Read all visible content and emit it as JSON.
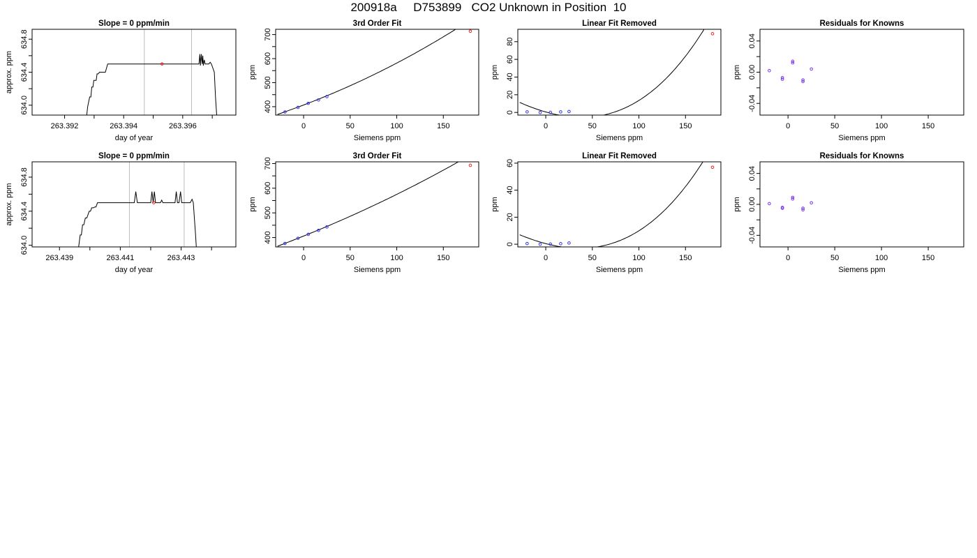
{
  "figure_title": "200918a     D753899   CO2 Unknown in Position  10",
  "chart_data": [
    {
      "id": "r1-time",
      "type": "line",
      "title": "Slope =  0  ppm/min",
      "xlabel": "day of year",
      "ylabel": "approx. ppm",
      "xlim": [
        263.3909,
        263.3978
      ],
      "ylim": [
        633.88,
        634.92
      ],
      "xticks": [
        263.392,
        263.393,
        263.394,
        263.395,
        263.396,
        263.397
      ],
      "xtick_labels": [
        "263.392",
        "",
        "263.394",
        "",
        "263.396",
        ""
      ],
      "yticks": [
        634.0,
        634.2,
        634.4,
        634.6,
        634.8
      ],
      "ytick_labels": [
        "634.0",
        "",
        "634.4",
        "",
        "634.8"
      ],
      "vlines": [
        263.3947,
        263.3963
      ],
      "vline_color": "#bbbbbb",
      "series": [
        {
          "color": "#000000",
          "x": [
            263.39275,
            263.39278,
            263.39285,
            263.39289,
            263.39292,
            263.39296,
            263.39299,
            263.39307,
            263.3931,
            263.39314,
            263.39318,
            263.3932,
            263.39338,
            263.39346,
            263.3965,
            263.39655,
            263.39658,
            263.3966,
            263.39663,
            263.39666,
            263.39668,
            263.3967,
            263.39673,
            263.39676,
            263.3968,
            263.39688,
            263.39693,
            263.39697,
            263.39707,
            263.39711,
            263.39715
          ],
          "y": [
            633.88,
            633.98,
            634.1,
            634.1,
            634.22,
            634.22,
            634.3,
            634.3,
            634.38,
            634.38,
            634.4,
            634.4,
            634.4,
            634.5,
            634.5,
            634.5,
            634.62,
            634.48,
            634.62,
            634.5,
            634.6,
            634.48,
            634.55,
            634.5,
            634.5,
            634.5,
            634.52,
            634.5,
            634.4,
            634.1,
            633.88
          ]
        }
      ],
      "points": [
        {
          "x": 263.3953,
          "y": 634.5,
          "color": "#ee2222"
        }
      ]
    },
    {
      "id": "r1-fit",
      "type": "line",
      "title": "3rd Order Fit",
      "xlabel": "Siemens ppm",
      "ylabel": "ppm",
      "xlim": [
        -30,
        188
      ],
      "ylim": [
        365,
        722
      ],
      "xticks": [
        0,
        50,
        100,
        150
      ],
      "xtick_labels": [
        "0",
        "50",
        "100",
        "150"
      ],
      "yticks": [
        400,
        450,
        500,
        550,
        600,
        650,
        700
      ],
      "ytick_labels": [
        "400",
        "",
        "500",
        "",
        "600",
        "",
        "700"
      ],
      "curve": {
        "fn": "fit",
        "a": 407,
        "b": 1.47,
        "c": 0.00264,
        "d": 1.1e-06,
        "x0": -28,
        "x1": 179,
        "color": "#000000"
      },
      "points": [
        {
          "x": -20,
          "y": 378,
          "color": "#3333ee"
        },
        {
          "x": -6,
          "y": 397,
          "color": "#3333ee"
        },
        {
          "x": 5,
          "y": 414,
          "color": "#3333ee"
        },
        {
          "x": 16,
          "y": 428,
          "color": "#3333ee"
        },
        {
          "x": 25,
          "y": 442,
          "color": "#3333ee"
        },
        {
          "x": 179,
          "y": 714,
          "color": "#ee2222"
        }
      ]
    },
    {
      "id": "r1-lin",
      "type": "line",
      "title": "Linear Fit Removed",
      "xlabel": "Siemens ppm",
      "ylabel": "ppm",
      "xlim": [
        -30,
        188
      ],
      "ylim": [
        -3,
        94
      ],
      "xticks": [
        0,
        50,
        100,
        150
      ],
      "xtick_labels": [
        "0",
        "50",
        "100",
        "150"
      ],
      "yticks": [
        0,
        20,
        40,
        60,
        80
      ],
      "ytick_labels": [
        "0",
        "20",
        "40",
        "60",
        "80"
      ],
      "curve": {
        "fn": "cubic",
        "a": 1e-05,
        "b": 0.0033,
        "c": 0.3,
        "yref": 0.55,
        "x0": -28,
        "x1": 179,
        "color": "#000000"
      },
      "points": [
        {
          "x": -20,
          "y": 0.6,
          "color": "#3333ee"
        },
        {
          "x": -6,
          "y": 0.0,
          "color": "#3333ee"
        },
        {
          "x": 5,
          "y": 0.1,
          "color": "#3333ee"
        },
        {
          "x": 16,
          "y": 0.6,
          "color": "#3333ee"
        },
        {
          "x": 25,
          "y": 1.0,
          "color": "#3333ee"
        },
        {
          "x": 179,
          "y": 89,
          "color": "#ee2222"
        }
      ]
    },
    {
      "id": "r1-res",
      "type": "scatter",
      "title": "Residuals for Knowns",
      "xlabel": "Siemens ppm",
      "ylabel": "ppm",
      "xlim": [
        -30,
        188
      ],
      "ylim": [
        -0.055,
        0.055
      ],
      "xticks": [
        0,
        50,
        100,
        150
      ],
      "xtick_labels": [
        "0",
        "50",
        "100",
        "150"
      ],
      "yticks": [
        -0.04,
        -0.02,
        0.0,
        0.02,
        0.04
      ],
      "ytick_labels": [
        "-0.04",
        "",
        "0.00",
        "",
        "0.04"
      ],
      "points": [
        {
          "x": -20,
          "y": 0.002,
          "color": "#7733ee"
        },
        {
          "x": -6,
          "y": -0.007,
          "color": "#7733ee"
        },
        {
          "x": -6,
          "y": -0.009,
          "color": "#7733ee"
        },
        {
          "x": 5,
          "y": 0.014,
          "color": "#7733ee"
        },
        {
          "x": 5,
          "y": 0.012,
          "color": "#7733ee"
        },
        {
          "x": 16,
          "y": -0.01,
          "color": "#7733ee"
        },
        {
          "x": 16,
          "y": -0.012,
          "color": "#7733ee"
        },
        {
          "x": 25,
          "y": 0.004,
          "color": "#7733ee"
        }
      ]
    },
    {
      "id": "r2-time",
      "type": "line",
      "title": "Slope =  0  ppm/min",
      "xlabel": "day of year",
      "ylabel": "approx. ppm",
      "xlim": [
        263.4381,
        263.4448
      ],
      "ylim": [
        633.98,
        634.98
      ],
      "xticks": [
        263.439,
        263.44,
        263.441,
        263.442,
        263.443,
        263.444
      ],
      "xtick_labels": [
        "263.439",
        "",
        "263.441",
        "",
        "263.443",
        ""
      ],
      "yticks": [
        634.0,
        634.2,
        634.4,
        634.6,
        634.8
      ],
      "ytick_labels": [
        "634.0",
        "",
        "634.4",
        "",
        "634.8"
      ],
      "vlines": [
        263.4413,
        263.4431
      ],
      "vline_color": "#bbbbbb",
      "series": [
        {
          "color": "#000000",
          "x": [
            263.43963,
            263.43968,
            263.43972,
            263.43976,
            263.4398,
            263.43985,
            263.4399,
            263.43998,
            263.44002,
            263.44006,
            263.44012,
            263.44016,
            263.4402,
            263.44025,
            263.4414,
            263.44146,
            263.44151,
            263.44156,
            263.44162,
            263.442,
            263.44204,
            263.44208,
            263.44212,
            263.44216,
            263.4422,
            263.44232,
            263.44236,
            263.4424,
            263.4428,
            263.44284,
            263.44288,
            263.44293,
            263.44298,
            263.44302,
            263.44306,
            263.4431,
            263.44314,
            263.44318,
            263.4433,
            263.44336,
            263.4434,
            263.44344,
            263.44347,
            263.4435
          ],
          "y": [
            633.98,
            634.12,
            634.12,
            634.24,
            634.24,
            634.32,
            634.32,
            634.4,
            634.4,
            634.44,
            634.44,
            634.45,
            634.45,
            634.5,
            634.5,
            634.5,
            634.63,
            634.5,
            634.5,
            634.5,
            634.63,
            634.5,
            634.63,
            634.5,
            634.5,
            634.5,
            634.53,
            634.5,
            634.5,
            634.63,
            634.5,
            634.5,
            634.63,
            634.5,
            634.5,
            634.5,
            634.5,
            634.5,
            634.5,
            634.54,
            634.5,
            634.3,
            634.15,
            633.98
          ]
        }
      ],
      "points": [
        {
          "x": 263.4421,
          "y": 634.5,
          "color": "#ee2222"
        }
      ]
    },
    {
      "id": "r2-fit",
      "type": "line",
      "title": "3rd Order Fit",
      "xlabel": "Siemens ppm",
      "ylabel": "ppm",
      "xlim": [
        -30,
        188
      ],
      "ylim": [
        362,
        707
      ],
      "xticks": [
        0,
        50,
        100,
        150
      ],
      "xtick_labels": [
        "0",
        "50",
        "100",
        "150"
      ],
      "yticks": [
        400,
        450,
        500,
        550,
        600,
        650,
        700
      ],
      "ytick_labels": [
        "400",
        "",
        "500",
        "",
        "600",
        "",
        "700"
      ],
      "curve": {
        "fn": "fit",
        "a": 406,
        "b": 1.52,
        "c": 0.00164,
        "d": 6.8e-07,
        "x0": -28,
        "x1": 179,
        "color": "#000000"
      },
      "points": [
        {
          "x": -20,
          "y": 376,
          "color": "#3333ee"
        },
        {
          "x": -6,
          "y": 397,
          "color": "#3333ee"
        },
        {
          "x": 5,
          "y": 413,
          "color": "#3333ee"
        },
        {
          "x": 16,
          "y": 429,
          "color": "#3333ee"
        },
        {
          "x": 25,
          "y": 443,
          "color": "#3333ee"
        },
        {
          "x": 179,
          "y": 693,
          "color": "#ee2222"
        }
      ]
    },
    {
      "id": "r2-lin",
      "type": "line",
      "title": "Linear Fit Removed",
      "xlabel": "Siemens ppm",
      "ylabel": "ppm",
      "xlim": [
        -30,
        188
      ],
      "ylim": [
        -2,
        61
      ],
      "xticks": [
        0,
        50,
        100,
        150
      ],
      "xtick_labels": [
        "0",
        "50",
        "100",
        "150"
      ],
      "yticks": [
        0,
        20,
        40,
        60
      ],
      "ytick_labels": [
        "0",
        "20",
        "40",
        "60"
      ],
      "curve": {
        "fn": "cubic",
        "a": 6.5e-06,
        "b": 0.0021,
        "c": 0.18,
        "yref": 0.45,
        "x0": -28,
        "x1": 179,
        "color": "#000000"
      },
      "points": [
        {
          "x": -20,
          "y": 0.5,
          "color": "#3333ee"
        },
        {
          "x": -6,
          "y": 0.0,
          "color": "#3333ee"
        },
        {
          "x": 5,
          "y": 0.1,
          "color": "#3333ee"
        },
        {
          "x": 16,
          "y": 0.4,
          "color": "#3333ee"
        },
        {
          "x": 25,
          "y": 0.9,
          "color": "#3333ee"
        },
        {
          "x": 179,
          "y": 57,
          "color": "#ee2222"
        }
      ]
    },
    {
      "id": "r2-res",
      "type": "scatter",
      "title": "Residuals for Knowns",
      "xlabel": "Siemens ppm",
      "ylabel": "ppm",
      "xlim": [
        -30,
        188
      ],
      "ylim": [
        -0.055,
        0.055
      ],
      "xticks": [
        0,
        50,
        100,
        150
      ],
      "xtick_labels": [
        "0",
        "50",
        "100",
        "150"
      ],
      "yticks": [
        -0.04,
        -0.02,
        0.0,
        0.02,
        0.04
      ],
      "ytick_labels": [
        "-0.04",
        "",
        "0.00",
        "",
        "0.04"
      ],
      "points": [
        {
          "x": -20,
          "y": 0.001,
          "color": "#7733ee"
        },
        {
          "x": -6,
          "y": -0.004,
          "color": "#7733ee"
        },
        {
          "x": -6,
          "y": -0.005,
          "color": "#7733ee"
        },
        {
          "x": 5,
          "y": 0.009,
          "color": "#7733ee"
        },
        {
          "x": 5,
          "y": 0.007,
          "color": "#7733ee"
        },
        {
          "x": 16,
          "y": -0.005,
          "color": "#7733ee"
        },
        {
          "x": 16,
          "y": -0.007,
          "color": "#7733ee"
        },
        {
          "x": 25,
          "y": 0.002,
          "color": "#7733ee"
        }
      ]
    }
  ]
}
